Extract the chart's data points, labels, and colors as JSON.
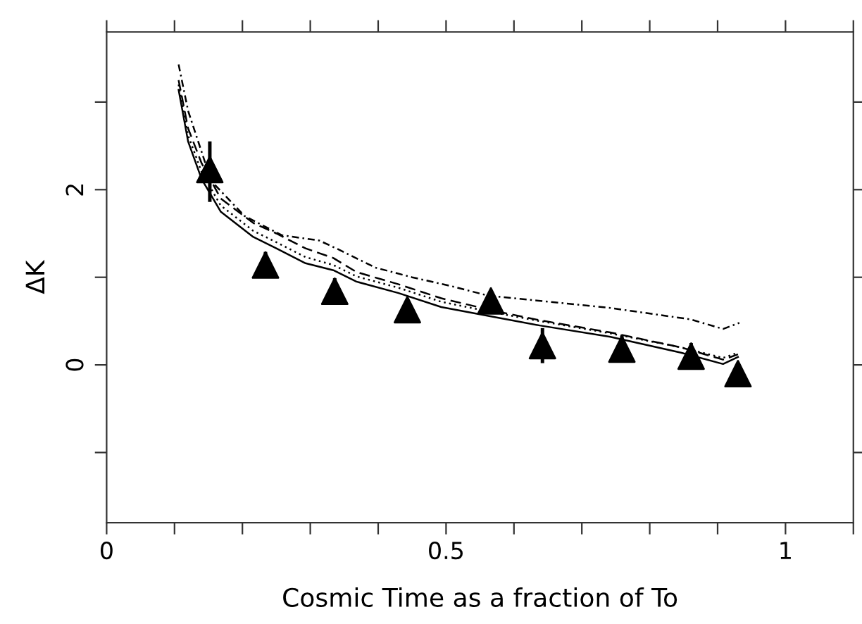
{
  "chart_data": {
    "type": "line",
    "xlabel": "Cosmic Time as a fraction of To",
    "ylabel": "ΔK",
    "xlim": [
      0,
      1.1
    ],
    "ylim": [
      -1.8,
      3.8
    ],
    "xticks": [
      0,
      {
        "value": 0.1,
        "label": null
      },
      {
        "value": 0.2,
        "label": null
      },
      {
        "value": 0.3,
        "label": null
      },
      {
        "value": 0.4,
        "label": null
      },
      0.5,
      {
        "value": 0.6,
        "label": null
      },
      {
        "value": 0.7,
        "label": null
      },
      {
        "value": 0.8,
        "label": null
      },
      {
        "value": 0.9,
        "label": null
      },
      1,
      {
        "value": 1.1,
        "label": null
      }
    ],
    "yticks": [
      {
        "value": -1,
        "label": null
      },
      0,
      {
        "value": 1,
        "label": null
      },
      2,
      {
        "value": 3,
        "label": null
      }
    ],
    "grid": false,
    "legend": false,
    "series": [
      {
        "color": "#000000",
        "line_style": "solid",
        "x": [
          0.106,
          0.12,
          0.14,
          0.168,
          0.216,
          0.25,
          0.293,
          0.334,
          0.368,
          0.43,
          0.493,
          0.569,
          0.638,
          0.742,
          0.846,
          0.908,
          0.93
        ],
        "values": [
          3.14,
          2.55,
          2.12,
          1.75,
          1.46,
          1.33,
          1.16,
          1.08,
          0.95,
          0.82,
          0.66,
          0.55,
          0.45,
          0.32,
          0.14,
          0.01,
          0.09
        ]
      },
      {
        "color": "#000000",
        "line_style": "dotted",
        "x": [
          0.106,
          0.12,
          0.14,
          0.168,
          0.216,
          0.25,
          0.293,
          0.334,
          0.368,
          0.43,
          0.493,
          0.569,
          0.638,
          0.742,
          0.846,
          0.908,
          0.93
        ],
        "values": [
          3.2,
          2.62,
          2.2,
          1.82,
          1.53,
          1.4,
          1.23,
          1.14,
          1.01,
          0.88,
          0.72,
          0.6,
          0.5,
          0.36,
          0.2,
          0.08,
          0.14
        ]
      },
      {
        "color": "#000000",
        "line_style": "dashed",
        "x": [
          0.106,
          0.12,
          0.14,
          0.168,
          0.216,
          0.25,
          0.293,
          0.334,
          0.368,
          0.43,
          0.493,
          0.569,
          0.638,
          0.742,
          0.846,
          0.908,
          0.93
        ],
        "values": [
          3.25,
          2.7,
          2.3,
          1.9,
          1.62,
          1.5,
          1.33,
          1.22,
          1.06,
          0.92,
          0.76,
          0.62,
          0.51,
          0.37,
          0.2,
          0.06,
          0.12
        ]
      },
      {
        "color": "#000000",
        "line_style": "dashdot",
        "x": [
          0.106,
          0.12,
          0.154,
          0.203,
          0.258,
          0.313,
          0.341,
          0.396,
          0.45,
          0.507,
          0.562,
          0.742,
          0.86,
          0.908,
          0.932
        ],
        "values": [
          3.43,
          2.9,
          2.1,
          1.7,
          1.48,
          1.42,
          1.32,
          1.11,
          1.0,
          0.9,
          0.79,
          0.65,
          0.52,
          0.41,
          0.48
        ]
      },
      {
        "type": "scatter",
        "color": "#000000",
        "marker": "triangle",
        "x": [
          0.152,
          0.234,
          0.336,
          0.443,
          0.566,
          0.642,
          0.759,
          0.861,
          0.93
        ],
        "values": [
          2.23,
          1.14,
          0.84,
          0.63,
          0.73,
          0.22,
          0.18,
          0.1,
          -0.1
        ],
        "errors": [
          [
            1.86,
            2.55
          ],
          0.15,
          0.15,
          null,
          null,
          0.2,
          0.15,
          0.15,
          null
        ]
      }
    ]
  }
}
